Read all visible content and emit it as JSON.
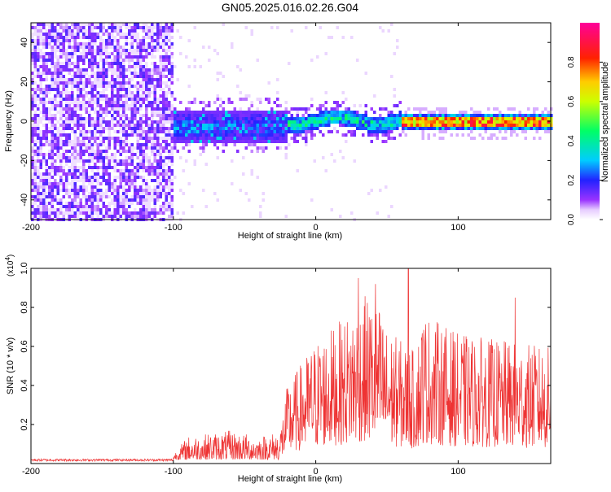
{
  "title": "GN05.2025.016.02.26.G04",
  "chart_data": [
    {
      "type": "heatmap",
      "xlabel": "Height of straight line (km)",
      "ylabel": "Frequency (Hz)",
      "xlim": [
        -200,
        165
      ],
      "ylim": [
        -50,
        50
      ],
      "xticks": [
        -200,
        -100,
        0,
        100
      ],
      "yticks": [
        -40,
        -20,
        0,
        20,
        40
      ],
      "colorbar": {
        "label": "Normalized spectral amplitude",
        "range": [
          0,
          1
        ],
        "ticks": [
          "0.0",
          "0.2",
          "0.4",
          "0.6",
          "0.8"
        ],
        "colors": [
          "#ff00ff",
          "#0000ff",
          "#00ffff",
          "#00ff00",
          "#ffff00",
          "#ff0000",
          "#ff00aa"
        ]
      },
      "regions": [
        {
          "x": [
            -200,
            -100
          ],
          "description_level": 0.15,
          "spread": 50
        },
        {
          "x": [
            -100,
            -20
          ],
          "freq_center": -2,
          "spread": 8,
          "level": 0.25
        },
        {
          "x": [
            -20,
            60
          ],
          "freq_center": 1,
          "spread": 4,
          "level": 0.4
        },
        {
          "x": [
            60,
            165
          ],
          "freq_center": 0,
          "spread": 3,
          "level": 0.85
        }
      ]
    },
    {
      "type": "line",
      "xlabel": "Height of straight line (km)",
      "ylabel": "SNR (10 * v/v)",
      "scale_label": "(x10",
      "scale_exp": "4",
      "scale_close": ")",
      "xlim": [
        -200,
        165
      ],
      "ylim": [
        0,
        1.0
      ],
      "xticks": [
        -200,
        -100,
        0,
        100
      ],
      "yticks": [
        "0.2",
        "0.4",
        "0.6",
        "0.8",
        "1.0"
      ],
      "series_color": "#ee3333",
      "envelope": [
        {
          "x": -200,
          "y": 0.02
        },
        {
          "x": -110,
          "y": 0.02
        },
        {
          "x": -100,
          "y": 0.03
        },
        {
          "x": -90,
          "y": 0.12
        },
        {
          "x": -60,
          "y": 0.15
        },
        {
          "x": -40,
          "y": 0.12
        },
        {
          "x": -25,
          "y": 0.15
        },
        {
          "x": -20,
          "y": 0.35
        },
        {
          "x": -10,
          "y": 0.45
        },
        {
          "x": 0,
          "y": 0.55
        },
        {
          "x": 20,
          "y": 0.65
        },
        {
          "x": 35,
          "y": 0.75
        },
        {
          "x": 45,
          "y": 0.7
        },
        {
          "x": 50,
          "y": 0.6
        },
        {
          "x": 60,
          "y": 0.55
        },
        {
          "x": 70,
          "y": 0.5
        },
        {
          "x": 75,
          "y": 0.68
        },
        {
          "x": 100,
          "y": 0.58
        },
        {
          "x": 130,
          "y": 0.55
        },
        {
          "x": 165,
          "y": 0.52
        }
      ],
      "peaks": [
        {
          "x": 30,
          "y": 0.95
        },
        {
          "x": 65,
          "y": 1.0
        },
        {
          "x": 42,
          "y": 0.92
        },
        {
          "x": 140,
          "y": 0.85
        }
      ]
    }
  ]
}
